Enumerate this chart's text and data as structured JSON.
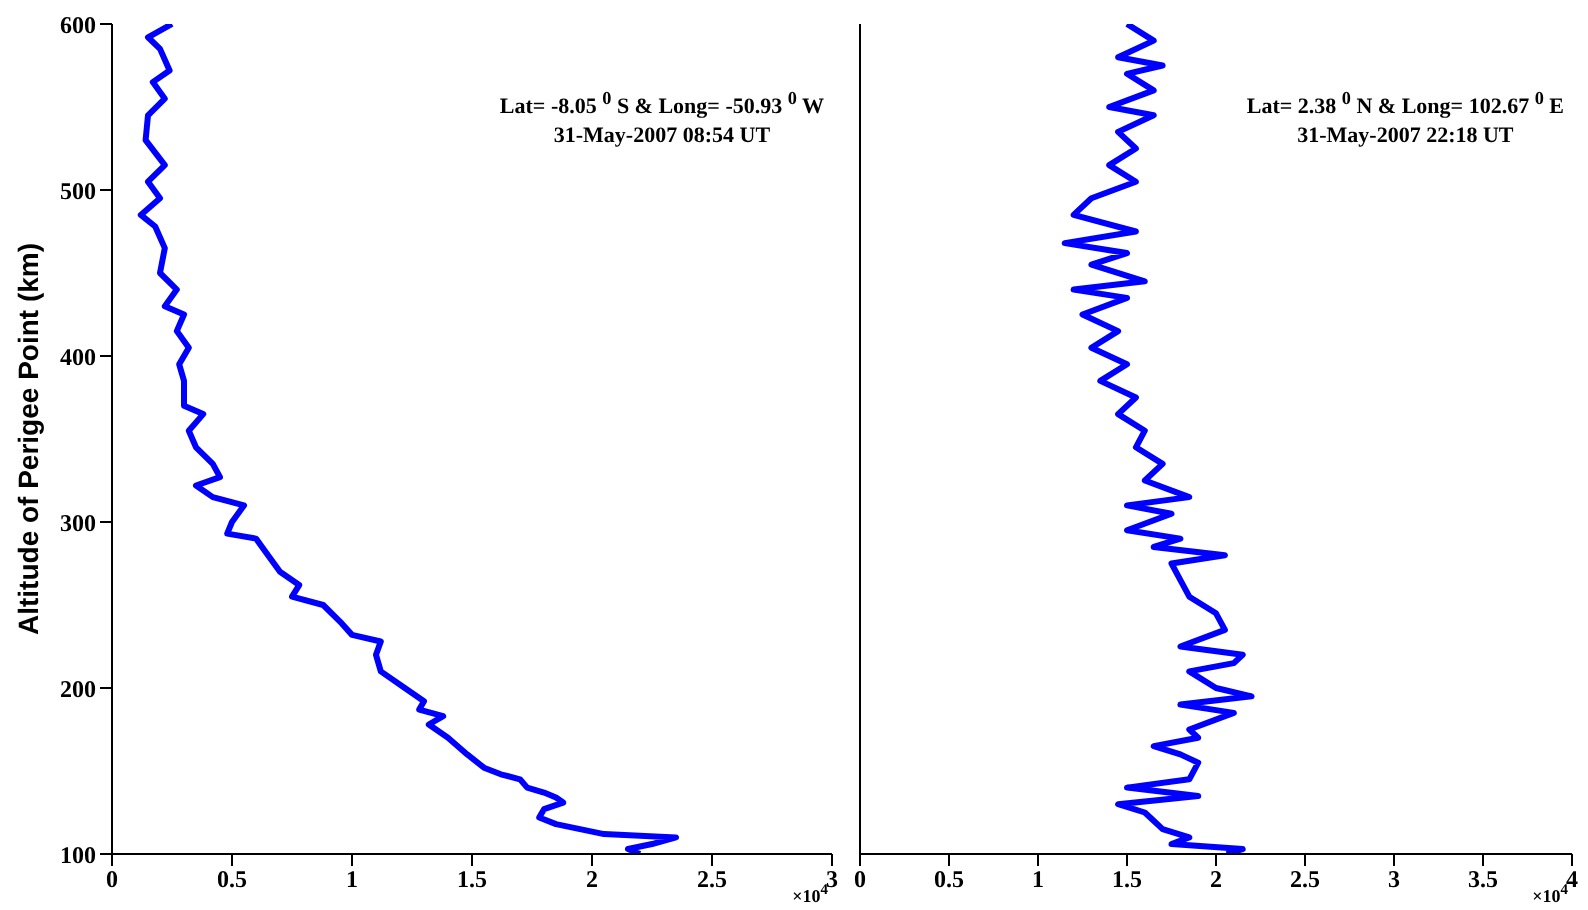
{
  "chart_data": [
    {
      "type": "line",
      "orientation": "horizontal",
      "ylabel": "Altitude of Perigee Point (km)",
      "annotations": [
        "Lat= -8.05 $^{0}$ S & Long= -50.93 $^{0}$ W",
        "31-May-2007  08:54 UT",
        "×10$^{4}$"
      ],
      "xlim": [
        0,
        3
      ],
      "xticks": [
        0,
        0.5,
        1,
        1.5,
        2,
        2.5,
        3
      ],
      "ylim": [
        100,
        600
      ],
      "yticks": [
        100,
        200,
        300,
        400,
        500,
        600
      ],
      "marker": "none",
      "line_style": "solid",
      "series": [
        {
          "color": "#0000ff",
          "x": [
            100,
            103,
            106,
            110,
            112,
            115,
            118,
            122,
            127,
            131,
            134,
            137,
            140,
            145,
            148,
            152,
            160,
            170,
            178,
            183,
            187,
            192,
            200,
            210,
            220,
            228,
            232,
            240,
            250,
            255,
            262,
            270,
            280,
            290,
            293,
            300,
            310,
            315,
            322,
            327,
            335,
            345,
            355,
            365,
            370,
            385,
            395,
            405,
            415,
            425,
            430,
            440,
            450,
            465,
            478,
            485,
            495,
            505,
            515,
            530,
            545,
            555,
            565,
            572,
            585,
            592,
            600
          ],
          "values": [
            2.2,
            2.15,
            2.25,
            2.35,
            2.05,
            1.95,
            1.85,
            1.78,
            1.8,
            1.88,
            1.85,
            1.8,
            1.73,
            1.7,
            1.62,
            1.55,
            1.48,
            1.4,
            1.32,
            1.38,
            1.28,
            1.3,
            1.22,
            1.12,
            1.1,
            1.12,
            1.0,
            0.95,
            0.88,
            0.75,
            0.78,
            0.7,
            0.65,
            0.6,
            0.48,
            0.5,
            0.55,
            0.42,
            0.35,
            0.45,
            0.42,
            0.35,
            0.32,
            0.38,
            0.3,
            0.3,
            0.28,
            0.32,
            0.27,
            0.3,
            0.22,
            0.27,
            0.2,
            0.22,
            0.18,
            0.12,
            0.2,
            0.15,
            0.22,
            0.14,
            0.15,
            0.22,
            0.17,
            0.24,
            0.2,
            0.15,
            0.25
          ]
        }
      ]
    },
    {
      "type": "line",
      "orientation": "horizontal",
      "tick_labels": "x",
      "annotations": [
        "Lat= 2.38 $^{0}$ N & Long= 102.67 $^{0}$ E",
        "31-May-2007  22:18 UT",
        "×10$^{4}$"
      ],
      "xlim": [
        0,
        4
      ],
      "xticks": [
        0,
        0.5,
        1,
        1.5,
        2,
        2.5,
        3,
        3.5,
        4
      ],
      "ylim": [
        100,
        600
      ],
      "yticks": [
        100,
        200,
        300,
        400,
        500,
        600
      ],
      "marker": "none",
      "line_style": "solid",
      "series": [
        {
          "color": "#0000ff",
          "x": [
            100,
            103,
            106,
            110,
            115,
            120,
            125,
            130,
            135,
            140,
            145,
            155,
            160,
            165,
            170,
            175,
            185,
            190,
            195,
            200,
            210,
            215,
            220,
            225,
            235,
            245,
            255,
            265,
            275,
            280,
            285,
            290,
            295,
            305,
            310,
            315,
            325,
            335,
            345,
            355,
            365,
            375,
            385,
            395,
            405,
            415,
            425,
            435,
            440,
            445,
            455,
            462,
            468,
            475,
            485,
            495,
            505,
            515,
            525,
            535,
            545,
            550,
            560,
            570,
            575,
            580,
            590,
            600
          ],
          "values": [
            2.06,
            2.15,
            1.75,
            1.85,
            1.7,
            1.65,
            1.6,
            1.45,
            1.9,
            1.5,
            1.85,
            1.9,
            1.8,
            1.65,
            1.9,
            1.85,
            2.1,
            1.8,
            2.2,
            2.0,
            1.85,
            2.1,
            2.15,
            1.8,
            2.05,
            2.0,
            1.85,
            1.8,
            1.75,
            2.05,
            1.65,
            1.8,
            1.5,
            1.75,
            1.5,
            1.85,
            1.6,
            1.7,
            1.55,
            1.6,
            1.45,
            1.55,
            1.35,
            1.5,
            1.3,
            1.45,
            1.25,
            1.5,
            1.2,
            1.6,
            1.3,
            1.5,
            1.15,
            1.55,
            1.2,
            1.3,
            1.55,
            1.4,
            1.55,
            1.45,
            1.65,
            1.4,
            1.65,
            1.5,
            1.7,
            1.45,
            1.65,
            1.5
          ]
        }
      ]
    }
  ]
}
